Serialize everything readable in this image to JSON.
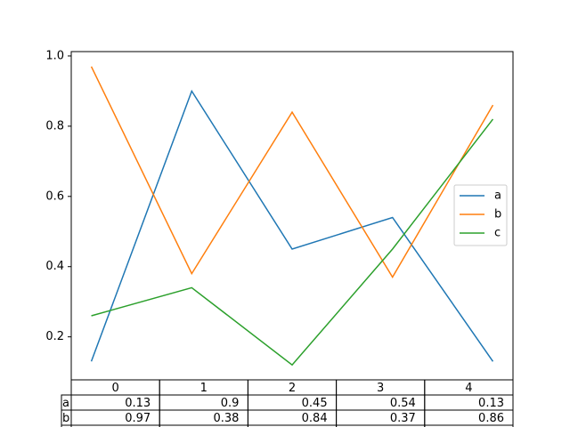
{
  "chart_data": {
    "type": "line",
    "x": [
      0,
      1,
      2,
      3,
      4
    ],
    "xlim": [
      -0.2,
      4.2
    ],
    "ylim": [
      0.0775,
      1.0125
    ],
    "yticks": [
      0.2,
      0.4,
      0.6,
      0.8,
      {
        "value": 1,
        "label": "1.0"
      }
    ],
    "legend": "right",
    "series": [
      {
        "name": "a",
        "color": "#1f77b4",
        "values": [
          0.13,
          0.9,
          0.45,
          0.54,
          0.13
        ]
      },
      {
        "name": "b",
        "color": "#ff7f0e",
        "values": [
          0.97,
          0.38,
          0.84,
          0.37,
          0.86
        ]
      },
      {
        "name": "c",
        "color": "#2ca02c",
        "values": [
          0.26,
          0.34,
          0.12,
          0.45,
          0.82
        ]
      }
    ]
  }
}
